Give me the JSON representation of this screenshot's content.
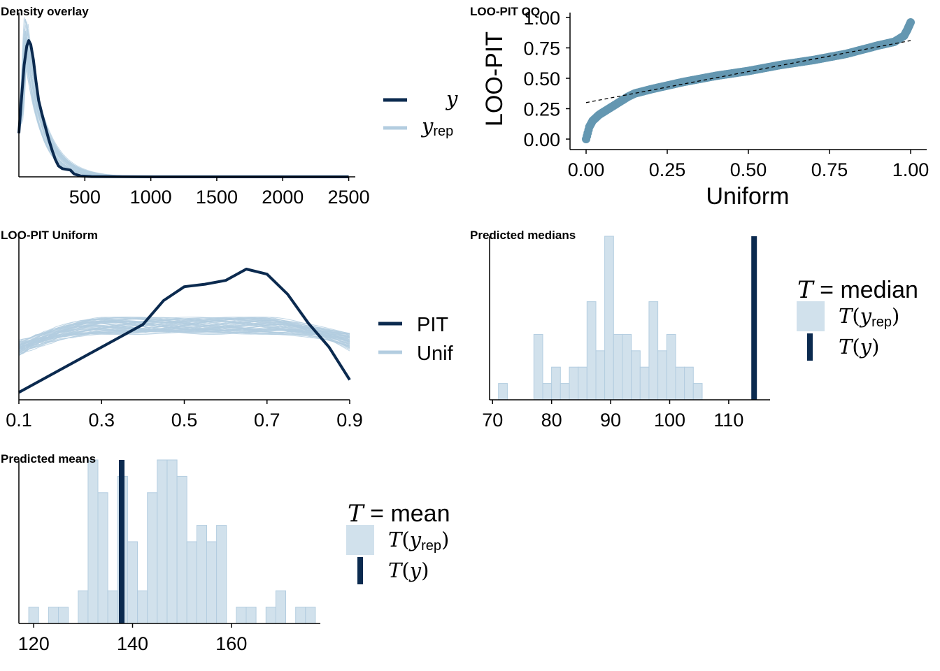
{
  "colors": {
    "dark": "#0b2a4f",
    "light": "#b3cde0",
    "bar_fill": "#d1e1ec",
    "bar_stroke": "#b3cde0",
    "qq": "#6497b1"
  },
  "chart_data": [
    {
      "id": "density",
      "type": "line",
      "title": "Density overlay",
      "xlim": [
        0,
        2550
      ],
      "xticks": [
        500,
        1000,
        1500,
        2000,
        2500
      ],
      "legend": {
        "position": "right",
        "y_label": "y",
        "yrep_label": "y",
        "yrep_sub": "rep"
      },
      "y": {
        "name": "y",
        "x": [
          0,
          20,
          40,
          60,
          75,
          90,
          110,
          130,
          150,
          175,
          200,
          225,
          250,
          275,
          300,
          330,
          360,
          390,
          420,
          470,
          550,
          700,
          1000,
          1500,
          2000,
          2500
        ],
        "density": [
          0.32,
          0.58,
          0.82,
          0.96,
          1.0,
          0.97,
          0.86,
          0.7,
          0.56,
          0.46,
          0.37,
          0.28,
          0.2,
          0.13,
          0.08,
          0.06,
          0.055,
          0.05,
          0.02,
          0.006,
          0.002,
          0.001,
          0.0,
          0.0,
          0.0,
          0.0
        ]
      },
      "yrep": {
        "name": "yrep",
        "peak_x": 55,
        "peak": [
          0.9,
          1.05,
          1.15,
          0.98,
          1.08,
          0.94,
          1.12,
          1.0,
          1.06,
          0.96
        ]
      }
    },
    {
      "id": "pit_qq",
      "type": "scatter",
      "title": "LOO-PIT QQ",
      "xlabel": "Uniform",
      "ylabel": "LOO-PIT",
      "xlim": [
        0,
        1
      ],
      "ylim": [
        0,
        1
      ],
      "xticks": [
        "0.00",
        "0.25",
        "0.50",
        "0.75",
        "1.00"
      ],
      "yticks": [
        "0.00",
        "0.25",
        "0.50",
        "0.75",
        "1.00"
      ],
      "points": {
        "x": [
          0.0,
          0.01,
          0.02,
          0.04,
          0.07,
          0.1,
          0.13,
          0.15,
          0.2,
          0.3,
          0.4,
          0.5,
          0.6,
          0.7,
          0.8,
          0.9,
          0.95,
          0.98,
          0.99,
          1.0
        ],
        "y": [
          0.0,
          0.1,
          0.15,
          0.2,
          0.25,
          0.3,
          0.35,
          0.375,
          0.41,
          0.47,
          0.52,
          0.56,
          0.61,
          0.65,
          0.7,
          0.77,
          0.8,
          0.85,
          0.9,
          0.96
        ]
      },
      "reference_line": {
        "x": [
          0,
          1
        ],
        "y": [
          0.3,
          0.81
        ]
      }
    },
    {
      "id": "pit_uniform",
      "type": "line",
      "title": "LOO-PIT Uniform",
      "xlim": [
        0.1,
        0.9
      ],
      "xticks": [
        "0.1",
        "0.3",
        "0.5",
        "0.7",
        "0.9"
      ],
      "legend": {
        "position": "right",
        "pit_label": "PIT",
        "unif_label": "Unif"
      },
      "pit": {
        "x": [
          0.1,
          0.2,
          0.3,
          0.4,
          0.45,
          0.5,
          0.55,
          0.6,
          0.65,
          0.7,
          0.75,
          0.8,
          0.85,
          0.9
        ],
        "density": [
          0.02,
          0.2,
          0.38,
          0.56,
          0.75,
          0.86,
          0.88,
          0.91,
          1.0,
          0.96,
          0.8,
          0.57,
          0.38,
          0.12
        ]
      },
      "unif_center": 0.5
    },
    {
      "id": "pred_medians",
      "type": "bar",
      "title": "Predicted medians",
      "xlim": [
        69.5,
        117
      ],
      "xticks": [
        70,
        80,
        90,
        100,
        110
      ],
      "bin_start": 71,
      "bin_width": 1.5,
      "counts": [
        1,
        0,
        0,
        0,
        4,
        1,
        2,
        1,
        2,
        2,
        6,
        3,
        10,
        4,
        4,
        3,
        2,
        6,
        3,
        4,
        2,
        2,
        1
      ],
      "observed": 114.3,
      "legend": {
        "position": "right",
        "title_stat": "median"
      }
    },
    {
      "id": "pred_means",
      "type": "bar",
      "title": "Predicted means",
      "xlim": [
        117,
        178
      ],
      "xticks": [
        120,
        140,
        160
      ],
      "bin_start": 119,
      "bin_width": 2,
      "counts": [
        1,
        0,
        1,
        1,
        0,
        2,
        10,
        8,
        2,
        9,
        5,
        2,
        8,
        10,
        10,
        9,
        5,
        6,
        5,
        6,
        0,
        1,
        1,
        0,
        1,
        2,
        0,
        1,
        1
      ],
      "observed": 137.8,
      "legend": {
        "position": "right",
        "title_stat": "mean"
      }
    }
  ]
}
